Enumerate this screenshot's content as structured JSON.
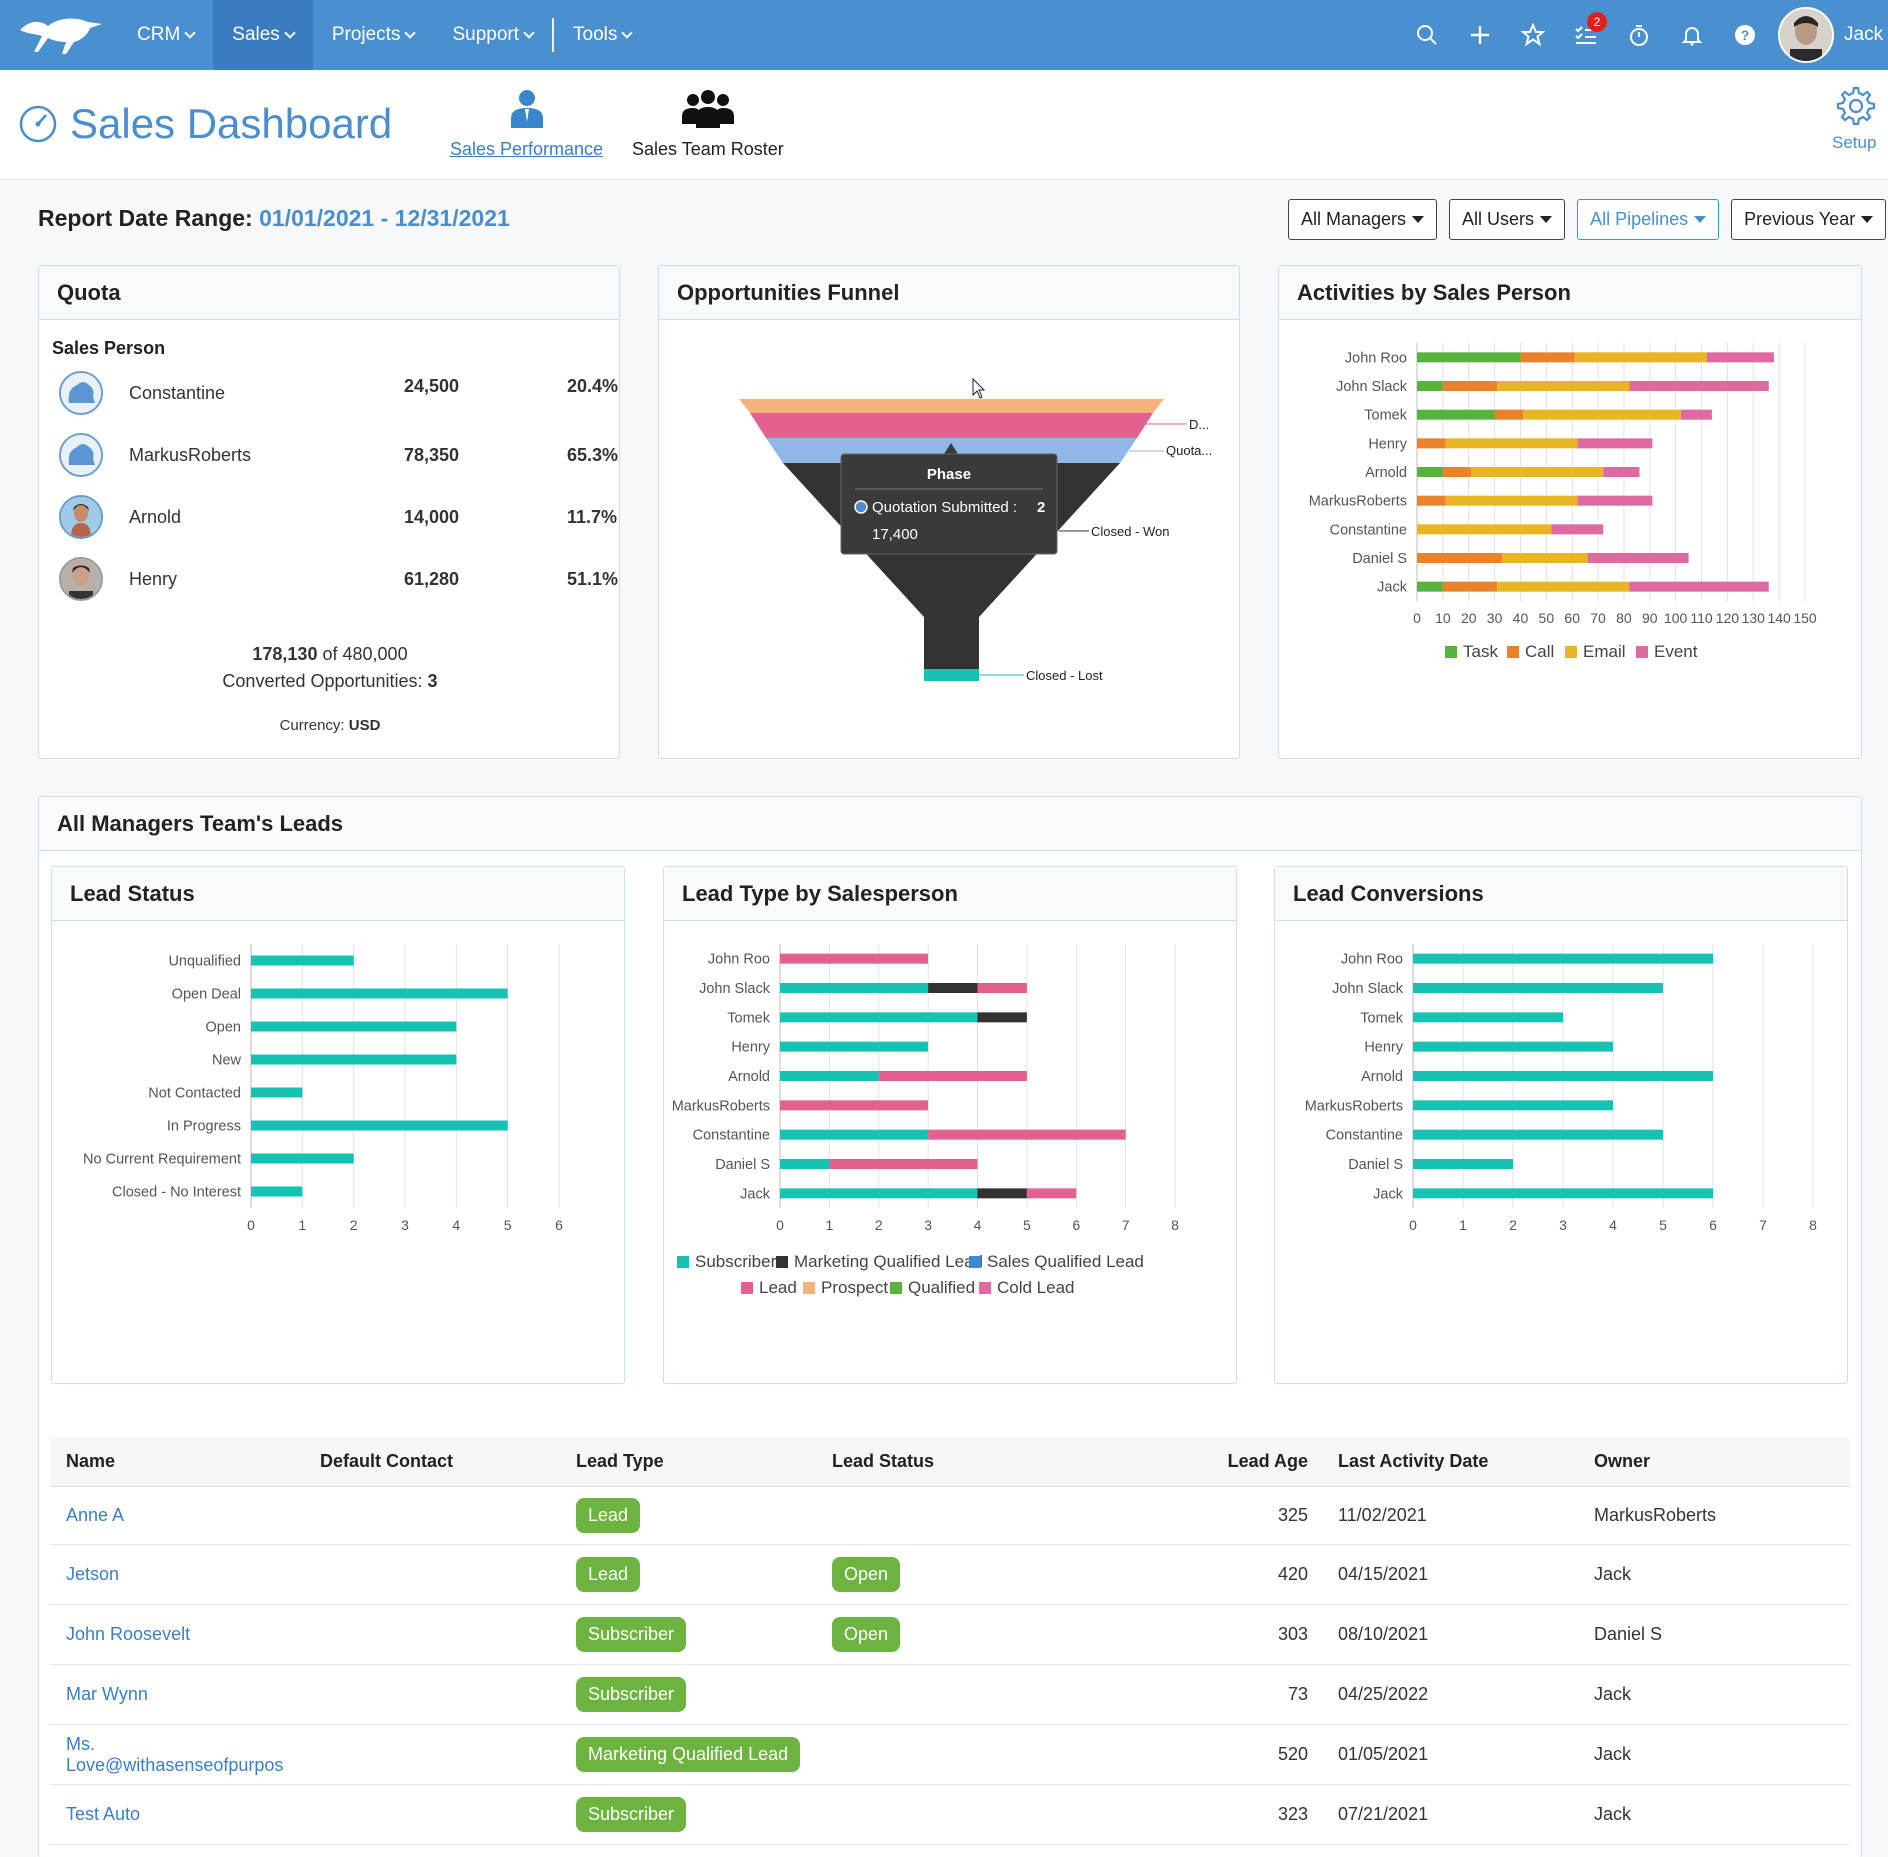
{
  "nav": {
    "menu": [
      {
        "label": "CRM",
        "active": false
      },
      {
        "label": "Sales",
        "active": true
      },
      {
        "label": "Projects",
        "active": false
      },
      {
        "label": "Support",
        "active": false
      },
      {
        "label": "Tools",
        "active": false
      }
    ],
    "icons": [
      "search-icon",
      "plus-icon",
      "star-icon",
      "tasks-icon",
      "timer-icon",
      "bell-icon",
      "help-icon"
    ],
    "tasks_badge": "2",
    "user": "Jack"
  },
  "header": {
    "title": "Sales Dashboard",
    "tabs": [
      {
        "label": "Sales Performance",
        "active": true
      },
      {
        "label": "Sales Team Roster",
        "active": false
      }
    ],
    "setup": "Setup"
  },
  "report": {
    "label": "Report Date Range:",
    "start": "01/01/2021",
    "dash": "-",
    "end": "12/31/2021"
  },
  "filters": [
    "All Managers",
    "All Users",
    "All Pipelines",
    "Previous Year"
  ],
  "quota": {
    "title": "Quota",
    "column": "Sales Person",
    "rows": [
      {
        "name": "Constantine",
        "value": "24,500",
        "pct": "20.4%"
      },
      {
        "name": "MarkusRoberts",
        "value": "78,350",
        "pct": "65.3%"
      },
      {
        "name": "Arnold",
        "value": "14,000",
        "pct": "11.7%"
      },
      {
        "name": "Henry",
        "value": "61,280",
        "pct": "51.1%"
      }
    ],
    "total": "178,130",
    "of": "of",
    "target": "480,000",
    "converted_label": "Converted Opportunities:",
    "converted": "3",
    "currency_label": "Currency:",
    "currency": "USD"
  },
  "funnel": {
    "title": "Opportunities Funnel",
    "labels": [
      "D...",
      "Quota...",
      "Closed - Won",
      "Closed - Lost"
    ],
    "tooltip": {
      "title": "Phase",
      "series": "Quotation Submitted :",
      "count": "2",
      "amount": "17,400"
    }
  },
  "activities": {
    "title": "Activities by Sales Person"
  },
  "leads_section": {
    "title": "All Managers Team's Leads"
  },
  "lead_status": {
    "title": "Lead Status"
  },
  "lead_type": {
    "title": "Lead Type by Salesperson"
  },
  "lead_conv": {
    "title": "Lead Conversions"
  },
  "chart_data": [
    {
      "type": "bar",
      "orientation": "horizontal",
      "stacked": true,
      "title": "Activities by Sales Person",
      "categories": [
        "John Roo",
        "John Slack",
        "Tomek",
        "Henry",
        "Arnold",
        "MarkusRoberts",
        "Constantine",
        "Daniel S",
        "Jack"
      ],
      "series": [
        {
          "name": "Task",
          "color": "#58b33e",
          "values": [
            40,
            10,
            30,
            0,
            10,
            0,
            0,
            0,
            10
          ]
        },
        {
          "name": "Call",
          "color": "#e9822b",
          "values": [
            21,
            21,
            11,
            11,
            11,
            11,
            0,
            33,
            21
          ]
        },
        {
          "name": "Email",
          "color": "#e8b625",
          "values": [
            51,
            51,
            61,
            51,
            51,
            51,
            52,
            33,
            51
          ]
        },
        {
          "name": "Event",
          "color": "#df6aa2",
          "values": [
            26,
            54,
            12,
            29,
            14,
            29,
            20,
            39,
            54
          ]
        }
      ],
      "xticks": [
        "0",
        "10",
        "20",
        "30",
        "40",
        "50",
        "60",
        "70",
        "80",
        "90",
        "100",
        "110",
        "120",
        "130",
        "140",
        "150"
      ],
      "xlim": [
        0,
        150
      ],
      "legend": "bottom"
    },
    {
      "type": "bar",
      "orientation": "horizontal",
      "title": "Lead Status",
      "categories": [
        "Unqualified",
        "Open Deal",
        "Open",
        "New",
        "Not Contacted",
        "In Progress",
        "No Current Requirement",
        "Closed - No Interest"
      ],
      "series": [
        {
          "name": "",
          "color": "#16c2b4",
          "values": [
            2,
            5,
            4,
            4,
            1,
            5,
            2,
            1
          ]
        }
      ],
      "xticks": [
        "0",
        "1",
        "2",
        "3",
        "4",
        "5",
        "6"
      ],
      "xlim": [
        0,
        6
      ]
    },
    {
      "type": "bar",
      "orientation": "horizontal",
      "stacked": true,
      "title": "Lead Type by Salesperson",
      "categories": [
        "John Roo",
        "John Slack",
        "Tomek",
        "Henry",
        "Arnold",
        "MarkusRoberts",
        "Constantine",
        "Daniel S",
        "Jack"
      ],
      "series": [
        {
          "name": "Subscriber",
          "color": "#16c2b4",
          "values": [
            0,
            3,
            4,
            3,
            2,
            0,
            3,
            1,
            4
          ]
        },
        {
          "name": "Marketing Qualified Lead",
          "color": "#333333",
          "values": [
            0,
            1,
            1,
            0,
            0,
            0,
            0,
            0,
            1
          ]
        },
        {
          "name": "Sales Qualified Lead",
          "color": "#3b87d8",
          "values": [
            0,
            0,
            0,
            0,
            0,
            0,
            0,
            0,
            0
          ]
        },
        {
          "name": "Lead",
          "color": "#e4608e",
          "values": [
            3,
            1,
            0,
            0,
            3,
            3,
            4,
            3,
            1
          ]
        },
        {
          "name": "Prospect",
          "color": "#f5b27a",
          "values": [
            0,
            0,
            0,
            0,
            0,
            0,
            0,
            0,
            0
          ]
        },
        {
          "name": "Qualified",
          "color": "#58b33e",
          "values": [
            0,
            0,
            0,
            0,
            0,
            0,
            0,
            0,
            0
          ]
        },
        {
          "name": "Cold Lead",
          "color": "#df6aa2",
          "values": [
            0,
            0,
            0,
            0,
            0,
            0,
            0,
            0,
            0
          ]
        }
      ],
      "xticks": [
        "0",
        "1",
        "2",
        "3",
        "4",
        "5",
        "6",
        "7",
        "8"
      ],
      "xlim": [
        0,
        8
      ],
      "legend": "bottom"
    },
    {
      "type": "bar",
      "orientation": "horizontal",
      "title": "Lead Conversions",
      "categories": [
        "John Roo",
        "John Slack",
        "Tomek",
        "Henry",
        "Arnold",
        "MarkusRoberts",
        "Constantine",
        "Daniel S",
        "Jack"
      ],
      "series": [
        {
          "name": "",
          "color": "#16c2b4",
          "values": [
            6,
            5,
            3,
            4,
            6,
            4,
            5,
            2,
            6
          ]
        }
      ],
      "xticks": [
        "0",
        "1",
        "2",
        "3",
        "4",
        "5",
        "6",
        "7",
        "8"
      ],
      "xlim": [
        0,
        8
      ]
    },
    {
      "type": "funnel",
      "title": "Opportunities Funnel",
      "stages": [
        "D...",
        "Quota...",
        "Closed - Won",
        "Closed - Lost"
      ],
      "colors": [
        "#f5b27a",
        "#e4608e",
        "#8fb8e8",
        "#333333",
        "#16c2b4"
      ]
    }
  ],
  "table": {
    "headers": [
      "Name",
      "Default Contact",
      "Lead Type",
      "Lead Status",
      "Lead Age",
      "Last Activity Date",
      "Owner"
    ],
    "rows": [
      {
        "name": "Anne A",
        "contact": "",
        "type": "Lead",
        "status": "",
        "age": "325",
        "date": "11/02/2021",
        "owner": "MarkusRoberts"
      },
      {
        "name": "Jetson",
        "contact": "",
        "type": "Lead",
        "status": "Open",
        "age": "420",
        "date": "04/15/2021",
        "owner": "Jack"
      },
      {
        "name": "John Roosevelt",
        "contact": "",
        "type": "Subscriber",
        "status": "Open",
        "age": "303",
        "date": "08/10/2021",
        "owner": "Daniel S"
      },
      {
        "name": "Mar Wynn",
        "contact": "",
        "type": "Subscriber",
        "status": "",
        "age": "73",
        "date": "04/25/2022",
        "owner": "Jack"
      },
      {
        "name": "Ms. Love@withasenseofpurpos",
        "contact": "",
        "type": "Marketing Qualified Lead",
        "status": "",
        "age": "520",
        "date": "01/05/2021",
        "owner": "Jack"
      },
      {
        "name": "Test Auto",
        "contact": "",
        "type": "Subscriber",
        "status": "",
        "age": "323",
        "date": "07/21/2021",
        "owner": "Jack"
      }
    ]
  }
}
